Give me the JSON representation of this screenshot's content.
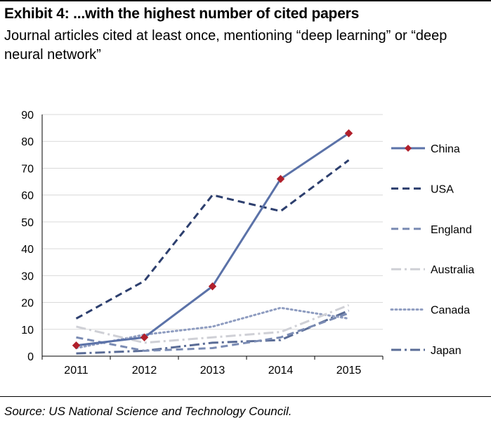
{
  "header": {
    "title": "Exhibit 4: ...with the highest number of cited papers",
    "subtitle": "Journal articles cited at least once, mentioning “deep learning” or “deep neural network”"
  },
  "footer": {
    "source": "Source: US National Science and Technology Council."
  },
  "chart_data": {
    "type": "line",
    "title": "Exhibit 4: ...with the highest number of cited papers",
    "subtitle": "Journal articles cited at least once, mentioning “deep learning” or “deep neural network”",
    "xlabel": "",
    "ylabel": "",
    "categories": [
      "2011",
      "2012",
      "2013",
      "2014",
      "2015"
    ],
    "ylim": [
      0,
      90
    ],
    "yticks": [
      0,
      10,
      20,
      30,
      40,
      50,
      60,
      70,
      80,
      90
    ],
    "grid": true,
    "legend_position": "right",
    "series": [
      {
        "name": "China",
        "values": [
          4,
          7,
          26,
          66,
          83
        ],
        "color": "#5b72a8",
        "style": "solid",
        "marker": "diamond",
        "marker_color": "#b0202c"
      },
      {
        "name": "USA",
        "values": [
          14,
          28,
          60,
          54,
          73
        ],
        "color": "#2d3f6e",
        "style": "dashed"
      },
      {
        "name": "England",
        "values": [
          7,
          2,
          3,
          7,
          16
        ],
        "color": "#7a8bb3",
        "style": "dashed"
      },
      {
        "name": "Australia",
        "values": [
          11,
          5,
          7,
          9,
          19
        ],
        "color": "#cfd0d6",
        "style": "dashdot"
      },
      {
        "name": "Canada",
        "values": [
          3,
          8,
          11,
          18,
          14
        ],
        "color": "#8e9cc0",
        "style": "dotted"
      },
      {
        "name": "Japan",
        "values": [
          1,
          2,
          5,
          6,
          17
        ],
        "color": "#5a6c96",
        "style": "dashdot"
      }
    ]
  }
}
